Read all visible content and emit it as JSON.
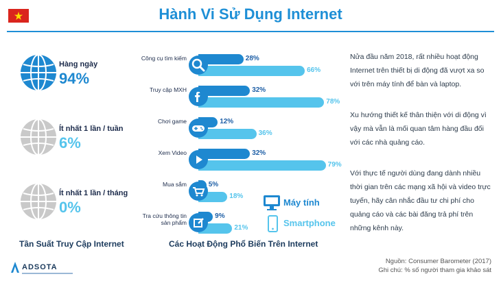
{
  "header": {
    "title": "Hành Vi Sử Dụng Internet",
    "flag_icon": "vietnam-flag-icon",
    "colors": {
      "accent": "#1e8fd6",
      "desktop": "#1e88d0",
      "mobile": "#55c4ec"
    }
  },
  "frequency": {
    "title": "Tần Suất Truy Cập Internet",
    "items": [
      {
        "label": "Hàng ngày",
        "value": "94%",
        "color": "#1e88d0",
        "icon": "globe-icon"
      },
      {
        "label": "Ít nhất 1 lần / tuần",
        "value": "6%",
        "color": "#55c4ec",
        "icon": "globe-icon"
      },
      {
        "label": "Ít nhất 1 lần / tháng",
        "value": "0%",
        "color": "#55c4ec",
        "icon": "globe-icon"
      }
    ]
  },
  "activities": {
    "title": "Các Hoạt Động Phổ Biến Trên Internet",
    "legend": {
      "desktop": "Máy tính",
      "mobile": "Smartphone",
      "desktop_icon": "monitor-icon",
      "mobile_icon": "smartphone-icon"
    }
  },
  "chart_data": {
    "type": "bar",
    "categories": [
      "Công cụ tìm kiếm",
      "Truy cập MXH",
      "Chơi game",
      "Xem Video",
      "Mua sắm",
      "Tra cứu thông tin sản phẩm"
    ],
    "category_icons": [
      "search-icon",
      "facebook-icon",
      "gamepad-icon",
      "play-icon",
      "cart-icon",
      "edit-icon"
    ],
    "series": [
      {
        "name": "Máy tính",
        "values": [
          28,
          32,
          12,
          32,
          5,
          9
        ]
      },
      {
        "name": "Smartphone",
        "values": [
          66,
          78,
          36,
          79,
          18,
          21
        ]
      }
    ],
    "unit": "%",
    "title": "Các Hoạt Động Phổ Biến Trên Internet",
    "orientation": "horizontal"
  },
  "paragraphs": [
    "Nửa đầu năm 2018, rất nhiều hoạt động Internet trên thiết bị di động đã vượt xa so với trên máy tính để bàn và laptop.",
    "Xu hướng thiết kế thân thiện với di động vì vậy mà vẫn là mối quan tâm hàng đầu đối với các nhà quảng cáo.",
    "Với thực tế người dùng đang dành nhiều thời gian trên các mạng xã hội và video trực tuyến, hãy cân nhắc đầu tư chi phí cho quảng cáo và các bài đăng trả phí trên những kênh này."
  ],
  "footer": {
    "source": "Nguồn: Consumer Barometer (2017)",
    "note": "Ghi chú: % số người tham gia khảo sát",
    "logo": "ADSOTA"
  }
}
